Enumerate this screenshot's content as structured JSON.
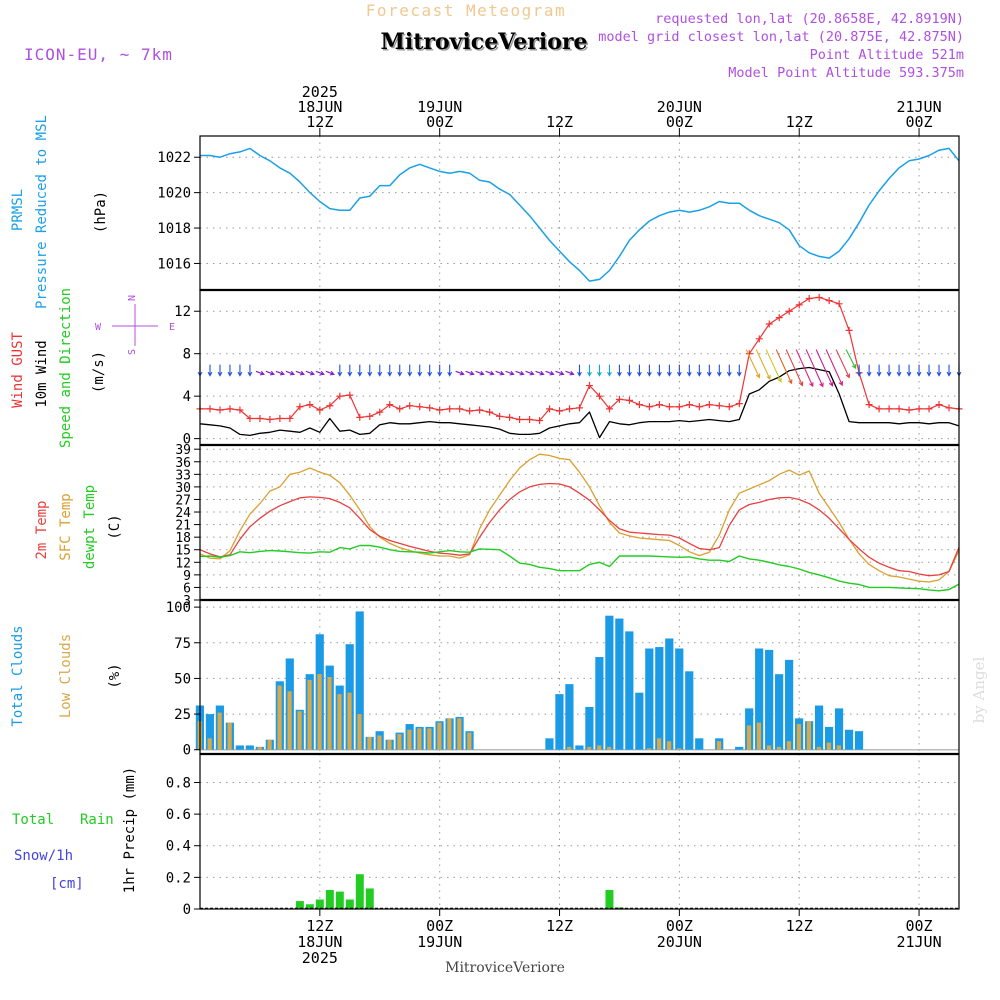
{
  "header": {
    "product": "Forecast Meteogram",
    "location": "MitroviceVeriore",
    "model": "ICON-EU, ~ 7km",
    "requested": "requested lon,lat (20.8658E, 42.8919N)",
    "closest": "model grid closest lon,lat (20.875E, 42.875N)",
    "point_altitude": "Point Altitude 521m",
    "model_altitude": "Model Point Altitude 593.375m",
    "footer_location": "MitroviceVeriore",
    "credit": "by Angel"
  },
  "time_axis": {
    "top_labels": [
      {
        "t": 12,
        "lines": [
          "2025",
          "18JUN",
          "12Z"
        ]
      },
      {
        "t": 24,
        "lines": [
          "19JUN",
          "00Z"
        ]
      },
      {
        "t": 36,
        "lines": [
          "12Z"
        ]
      },
      {
        "t": 48,
        "lines": [
          "20JUN",
          "00Z"
        ]
      },
      {
        "t": 60,
        "lines": [
          "12Z"
        ]
      },
      {
        "t": 72,
        "lines": [
          "21JUN",
          "00Z"
        ]
      }
    ],
    "bottom_labels": [
      {
        "t": 12,
        "lines": [
          "12Z",
          "18JUN",
          "2025"
        ]
      },
      {
        "t": 24,
        "lines": [
          "00Z",
          "19JUN"
        ]
      },
      {
        "t": 36,
        "lines": [
          "12Z"
        ]
      },
      {
        "t": 48,
        "lines": [
          "00Z",
          "20JUN"
        ]
      },
      {
        "t": 60,
        "lines": [
          "12Z"
        ]
      },
      {
        "t": 72,
        "lines": [
          "00Z",
          "21JUN"
        ]
      }
    ]
  },
  "panels": {
    "pressure": {
      "ylabel_1": "PRMSL",
      "ylabel_2": "Pressure Reduced to MSL",
      "unit": "(hPa)"
    },
    "wind": {
      "ylabel_1": "Wind GUST",
      "ylabel_2": "10m Wind",
      "ylabel_3": "Speed and Direction",
      "unit": "(m/s)",
      "compass": {
        "n": "N",
        "s": "S",
        "w": "W",
        "e": "E"
      }
    },
    "temp": {
      "ylabel_1": "2m Temp",
      "ylabel_2": "SFC Temp",
      "ylabel_3": "dewpt Temp",
      "unit": "(C)"
    },
    "clouds": {
      "ylabel_1": "Total Clouds",
      "ylabel_2": "Low Clouds",
      "unit": "(%)"
    },
    "precip": {
      "ylabel_1": "Total",
      "ylabel_1b": "Rain",
      "ylabel_2": "Snow/1h",
      "ylabel_3": "[cm]",
      "unit": "1hr Precip (mm)"
    }
  },
  "colors": {
    "pressure": "#1aa0e6",
    "gust": "#ee3333",
    "wind": "#000000",
    "temp2m": "#e84040",
    "sfc": "#d9a030",
    "dewpt": "#22cc22",
    "total_clouds": "#1b9be6",
    "low_clouds": "#d9a84a",
    "rain": "#22cc22",
    "snow": "#4444dd",
    "label_purple": "#b050e0",
    "title_orange": "#f0c890",
    "grid": "#999999"
  },
  "chart_data": [
    {
      "type": "line",
      "name": "pressure",
      "ylim": [
        1014.5,
        1023.2
      ],
      "yticks": [
        1016,
        1018,
        1020,
        1022
      ],
      "x": [
        0,
        1,
        2,
        3,
        4,
        5,
        6,
        7,
        8,
        9,
        10,
        11,
        12,
        13,
        14,
        15,
        16,
        17,
        18,
        19,
        20,
        21,
        22,
        23,
        24,
        25,
        26,
        27,
        28,
        29,
        30,
        31,
        32,
        33,
        34,
        35,
        36,
        37,
        38,
        39,
        40,
        41,
        42,
        43,
        44,
        45,
        46,
        47,
        48,
        49,
        50,
        51,
        52,
        53,
        54,
        55,
        56,
        57,
        58,
        59,
        60,
        61,
        62,
        63,
        64,
        65,
        66,
        67,
        68,
        69,
        70,
        71,
        72,
        73,
        74,
        75,
        76
      ],
      "values": [
        1022.1,
        1022.1,
        1022.0,
        1022.2,
        1022.3,
        1022.5,
        1022.1,
        1021.8,
        1021.4,
        1021.1,
        1020.6,
        1020.0,
        1019.5,
        1019.1,
        1019.0,
        1019.0,
        1019.7,
        1019.8,
        1020.4,
        1020.4,
        1021.0,
        1021.4,
        1021.6,
        1021.4,
        1021.2,
        1021.1,
        1021.2,
        1021.1,
        1020.7,
        1020.6,
        1020.2,
        1019.9,
        1019.3,
        1018.7,
        1018.0,
        1017.3,
        1016.7,
        1016.1,
        1015.6,
        1015.0,
        1015.1,
        1015.6,
        1016.4,
        1017.3,
        1017.9,
        1018.4,
        1018.7,
        1018.9,
        1019.0,
        1018.9,
        1019.0,
        1019.2,
        1019.5,
        1019.4,
        1019.4,
        1019.0,
        1018.7,
        1018.5,
        1018.3,
        1017.9,
        1017.0,
        1016.6,
        1016.4,
        1016.3,
        1016.7,
        1017.4,
        1018.3,
        1019.3,
        1020.1,
        1020.8,
        1021.4,
        1021.8,
        1021.9,
        1022.1,
        1022.4,
        1022.5,
        1021.8
      ]
    },
    {
      "type": "line",
      "name": "wind",
      "ylim": [
        -0.6,
        14
      ],
      "yticks": [
        0,
        4,
        8,
        12
      ],
      "series": [
        {
          "name": "Wind GUST",
          "values": [
            2.8,
            2.8,
            2.7,
            2.8,
            2.7,
            1.9,
            1.9,
            1.8,
            1.9,
            1.9,
            3.0,
            3.2,
            2.7,
            3.1,
            4.0,
            4.1,
            2.0,
            2.1,
            2.5,
            3.2,
            2.8,
            3.1,
            3.0,
            2.9,
            2.7,
            2.8,
            2.8,
            2.6,
            2.7,
            2.5,
            2.1,
            2.0,
            1.8,
            1.8,
            1.7,
            2.8,
            2.6,
            2.8,
            2.9,
            5.0,
            4.0,
            2.8,
            3.7,
            3.6,
            3.2,
            3.0,
            3.2,
            3.0,
            3.0,
            3.2,
            3.0,
            3.2,
            3.1,
            3.0,
            3.3,
            8.0,
            9.4,
            10.8,
            11.4,
            12.0,
            12.6,
            13.2,
            13.3,
            13.0,
            12.7,
            10.2,
            6.2,
            3.2,
            2.8,
            2.8,
            2.8,
            2.7,
            2.8,
            2.8,
            3.2,
            2.9,
            2.8
          ]
        },
        {
          "name": "10m Wind",
          "values": [
            1.4,
            1.3,
            1.2,
            1.0,
            0.4,
            0.3,
            0.5,
            0.6,
            0.8,
            0.7,
            0.6,
            1.0,
            0.6,
            1.9,
            0.7,
            0.8,
            0.4,
            0.5,
            1.3,
            1.5,
            1.4,
            1.4,
            1.5,
            1.6,
            1.5,
            1.5,
            1.4,
            1.3,
            1.2,
            1.1,
            0.9,
            0.5,
            0.4,
            0.4,
            0.5,
            1.0,
            1.2,
            1.4,
            1.5,
            2.5,
            0.1,
            1.6,
            1.4,
            1.3,
            1.5,
            1.6,
            1.6,
            1.6,
            1.7,
            1.6,
            1.7,
            1.8,
            1.7,
            1.6,
            1.8,
            4.2,
            4.6,
            5.4,
            5.8,
            6.4,
            6.6,
            6.7,
            6.5,
            6.3,
            4.2,
            1.6,
            1.5,
            1.5,
            1.5,
            1.5,
            1.4,
            1.5,
            1.5,
            1.4,
            1.5,
            1.5,
            1.2
          ]
        }
      ]
    },
    {
      "type": "line",
      "name": "temperature",
      "ylim": [
        3,
        40
      ],
      "yticks": [
        3,
        6,
        9,
        12,
        15,
        18,
        21,
        24,
        27,
        30,
        33,
        36,
        39
      ],
      "series": [
        {
          "name": "2m Temp",
          "values": [
            15.0,
            14.0,
            13.3,
            13.8,
            17.5,
            20.5,
            22.5,
            24.2,
            25.5,
            26.5,
            27.4,
            27.6,
            27.5,
            27.2,
            26.3,
            25.0,
            22.5,
            19.8,
            18.2,
            17.2,
            16.5,
            15.8,
            15.2,
            14.6,
            14.2,
            14.0,
            13.7,
            14.0,
            18.0,
            21.5,
            24.5,
            27.0,
            28.8,
            30.0,
            30.6,
            30.8,
            30.7,
            30.0,
            28.5,
            26.8,
            24.5,
            22.0,
            20.0,
            19.2,
            19.0,
            18.8,
            18.6,
            18.5,
            17.8,
            16.5,
            15.3,
            15.0,
            15.5,
            20.8,
            24.5,
            25.8,
            26.3,
            27.0,
            27.4,
            27.5,
            27.0,
            26.0,
            24.5,
            22.5,
            20.0,
            17.5,
            15.2,
            13.2,
            11.8,
            10.8,
            10.0,
            9.8,
            9.2,
            8.8,
            9.0,
            9.8,
            15.6
          ]
        },
        {
          "name": "SFC Temp",
          "values": [
            14.0,
            13.0,
            12.8,
            14.8,
            19.5,
            23.5,
            26.0,
            29.0,
            30.0,
            33.0,
            33.5,
            34.5,
            33.5,
            32.8,
            31.0,
            28.0,
            24.5,
            20.5,
            18.0,
            16.5,
            15.5,
            14.8,
            14.2,
            13.8,
            13.5,
            13.5,
            13.0,
            13.8,
            20.0,
            24.5,
            28.0,
            31.5,
            34.5,
            36.5,
            37.8,
            37.5,
            36.8,
            36.5,
            33.5,
            30.0,
            25.5,
            21.5,
            19.0,
            18.3,
            17.8,
            17.6,
            17.4,
            17.2,
            16.0,
            14.5,
            13.6,
            14.4,
            18.5,
            24.5,
            28.5,
            29.5,
            30.5,
            31.5,
            33.0,
            34.0,
            32.8,
            33.8,
            28.5,
            25.0,
            21.5,
            17.5,
            14.0,
            11.5,
            10.0,
            8.8,
            8.5,
            8.0,
            7.5,
            7.3,
            7.8,
            9.8,
            14.8
          ]
        },
        {
          "name": "dewpt Temp",
          "values": [
            13.4,
            13.5,
            13.2,
            13.6,
            14.5,
            14.3,
            14.6,
            14.8,
            14.7,
            14.5,
            14.3,
            14.2,
            14.5,
            14.4,
            15.5,
            15.2,
            16.0,
            16.0,
            15.6,
            15.0,
            14.6,
            14.5,
            14.4,
            14.2,
            14.5,
            14.8,
            14.5,
            14.4,
            15.2,
            15.1,
            15.0,
            13.5,
            11.8,
            11.5,
            10.8,
            10.5,
            10.0,
            10.0,
            10.0,
            11.5,
            12.0,
            11.0,
            13.5,
            13.5,
            13.5,
            13.5,
            13.4,
            13.3,
            13.2,
            13.3,
            12.8,
            12.5,
            12.5,
            12.2,
            13.5,
            12.8,
            12.5,
            12.0,
            11.4,
            11.0,
            10.4,
            9.6,
            9.0,
            8.3,
            7.5,
            7.0,
            6.7,
            6.0,
            6.0,
            6.0,
            5.9,
            5.8,
            5.7,
            5.4,
            5.2,
            5.5,
            6.8
          ]
        }
      ]
    },
    {
      "type": "bar",
      "name": "clouds",
      "ylim": [
        -3,
        105
      ],
      "yticks": [
        0,
        25,
        50,
        75,
        100
      ],
      "series": [
        {
          "name": "Total Clouds",
          "values": [
            31,
            25,
            31,
            19,
            3,
            3,
            2,
            7,
            48,
            64,
            28,
            53,
            81,
            59,
            45,
            74,
            97,
            9,
            13,
            7,
            12,
            18,
            16,
            16,
            20,
            22,
            23,
            13,
            0,
            0,
            0,
            0,
            0,
            0,
            0,
            8,
            39,
            46,
            3,
            30,
            65,
            94,
            92,
            83,
            40,
            71,
            72,
            78,
            71,
            55,
            8,
            0,
            8,
            0,
            2,
            29,
            71,
            70,
            53,
            63,
            22,
            20,
            31,
            16,
            29,
            14,
            13,
            0,
            0,
            0,
            0,
            0,
            0,
            0,
            0,
            0
          ]
        },
        {
          "name": "Low Clouds",
          "values": [
            20,
            8,
            26,
            19,
            0,
            0,
            2,
            7,
            45,
            41,
            27,
            49,
            53,
            51,
            39,
            40,
            25,
            9,
            10,
            7,
            11,
            14,
            15,
            15,
            19,
            22,
            22,
            12,
            0,
            0,
            0,
            0,
            0,
            0,
            0,
            0,
            0,
            2,
            0,
            2,
            3,
            2,
            0,
            0,
            0,
            1,
            8,
            6,
            1,
            0,
            0,
            0,
            6,
            0,
            0,
            17,
            19,
            3,
            2,
            6,
            18,
            20,
            2,
            5,
            3,
            0,
            0,
            0,
            0,
            0,
            0,
            0,
            0,
            0,
            0,
            0
          ]
        }
      ]
    },
    {
      "type": "bar",
      "name": "precip",
      "ylim": [
        0,
        0.98
      ],
      "yticks": [
        0,
        0.2,
        0.4,
        0.6,
        0.8
      ],
      "series": [
        {
          "name": "Rain",
          "values": [
            0,
            0,
            0,
            0,
            0,
            0,
            0,
            0,
            0,
            0,
            0.05,
            0.03,
            0.06,
            0.12,
            0.11,
            0.06,
            0.22,
            0.13,
            0,
            0,
            0,
            0,
            0,
            0,
            0,
            0,
            0,
            0,
            0,
            0,
            0,
            0,
            0,
            0,
            0,
            0,
            0,
            0,
            0,
            0,
            0,
            0.12,
            0.01,
            0,
            0,
            0,
            0,
            0,
            0,
            0,
            0,
            0,
            0,
            0,
            0,
            0,
            0,
            0,
            0,
            0,
            0,
            0,
            0,
            0,
            0,
            0,
            0,
            0,
            0,
            0,
            0,
            0,
            0,
            0,
            0,
            0
          ]
        }
      ]
    }
  ]
}
